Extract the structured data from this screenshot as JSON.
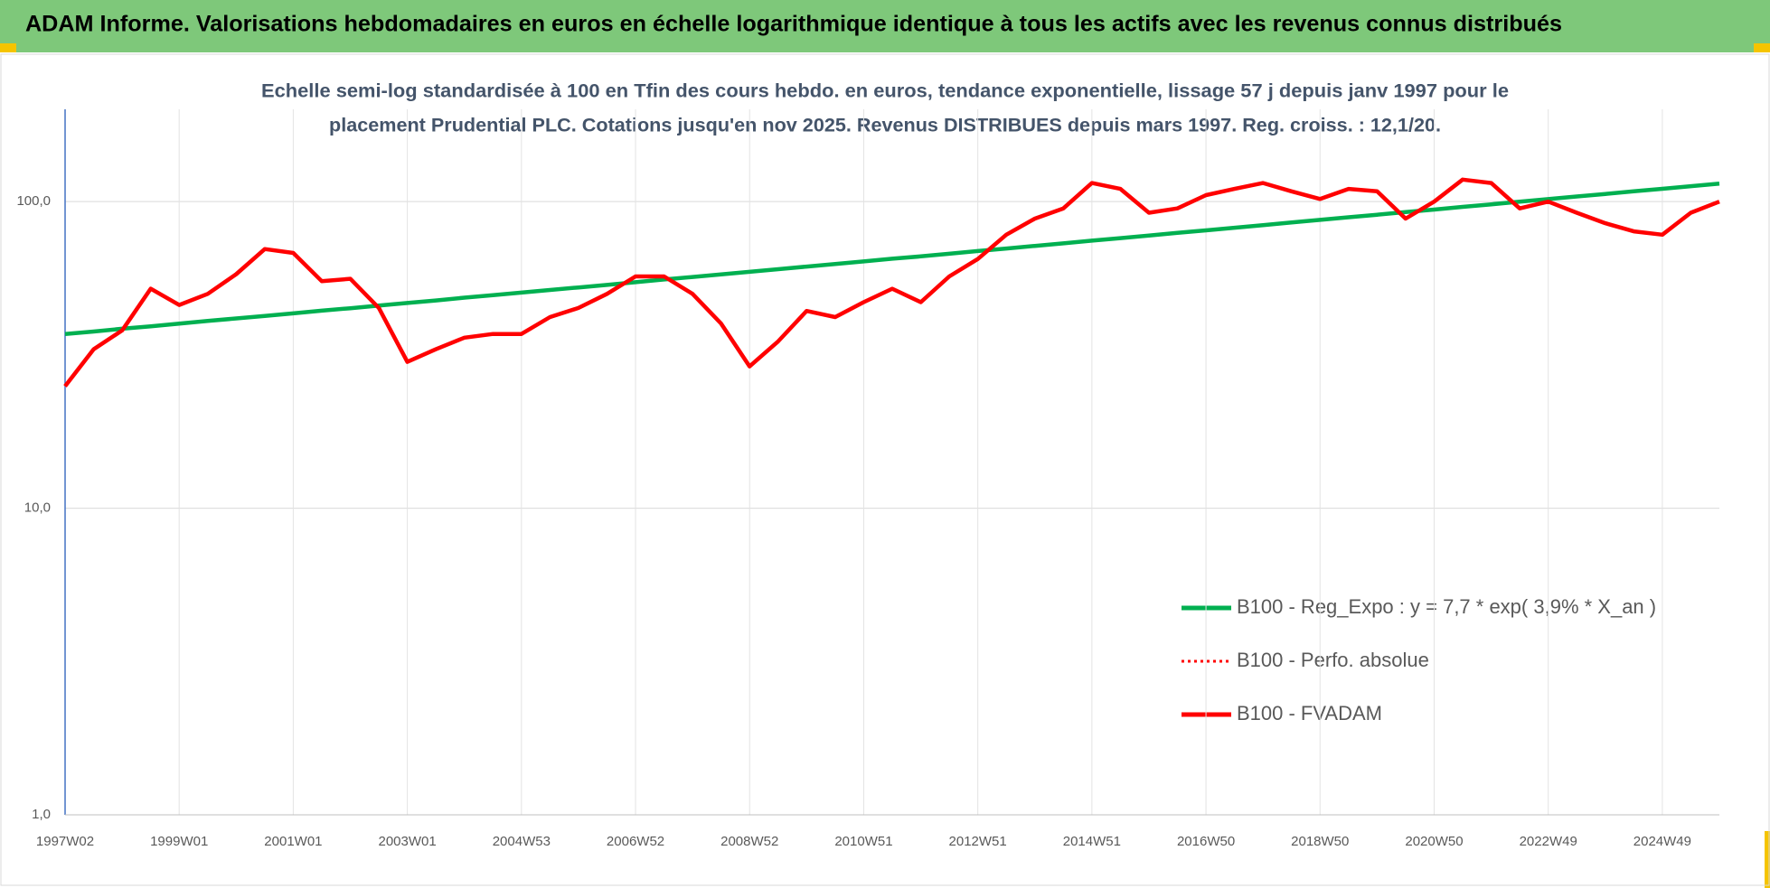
{
  "header": {
    "title": "ADAM Informe. Valorisations hebdomadaires en euros en échelle logarithmique identique à tous les actifs avec les revenus connus distribués"
  },
  "chart_data": {
    "type": "line",
    "subtitle": [
      "Echelle semi-log standardisée à 100 en Tfin des cours hebdo. en euros, tendance exponentielle, lissage 57 j depuis janv 1997 pour le",
      "placement Prudential PLC. Cotations jusqu'en nov 2025. Revenus DISTRIBUES depuis mars 1997. Reg. croiss. : 12,1/20."
    ],
    "categories": [
      "1997W02",
      null,
      null,
      null,
      "1999W01",
      null,
      null,
      null,
      "2001W01",
      null,
      null,
      null,
      "2003W01",
      null,
      null,
      null,
      "2004W53",
      null,
      null,
      null,
      "2006W52",
      null,
      null,
      null,
      "2008W52",
      null,
      null,
      null,
      "2010W51",
      null,
      null,
      null,
      "2012W51",
      null,
      null,
      null,
      "2014W51",
      null,
      null,
      null,
      "2016W50",
      null,
      null,
      null,
      "2018W50",
      null,
      null,
      null,
      "2020W50",
      null,
      null,
      null,
      "2022W49",
      null,
      null,
      null,
      "2024W49",
      null,
      null
    ],
    "log_scale": true,
    "ylim": [
      1,
      200
    ],
    "yticks": [
      {
        "value": 1,
        "label": "1,0"
      },
      {
        "value": 10,
        "label": "10,0"
      },
      {
        "value": 100,
        "label": "100,0"
      }
    ],
    "grid": true,
    "legend": "right",
    "series": [
      {
        "name": "B100 - Reg_Expo : y = 7,7 * exp( 3,9% *  X_an )",
        "color": "#00b050",
        "style": "solid",
        "values": [
          37.0,
          37.7,
          38.5,
          39.2,
          40.0,
          40.8,
          41.6,
          42.4,
          43.2,
          44.1,
          44.9,
          45.8,
          46.7,
          47.6,
          48.6,
          49.5,
          50.5,
          51.5,
          52.5,
          53.5,
          54.6,
          55.7,
          56.8,
          57.9,
          59.0,
          60.2,
          61.4,
          62.6,
          63.8,
          65.1,
          66.3,
          67.6,
          69.0,
          70.3,
          71.7,
          73.1,
          74.6,
          76.0,
          77.5,
          79.1,
          80.6,
          82.2,
          83.8,
          85.5,
          87.2,
          88.9,
          90.6,
          92.4,
          94.2,
          96.1,
          98.0,
          99.9,
          101.9,
          103.9,
          105.9,
          108.0,
          110.1,
          112.3,
          114.5
        ]
      },
      {
        "name": "B100 - Perfo. absolue",
        "color": "#ff0000",
        "style": "dotted",
        "values": [
          25,
          33,
          38,
          52,
          46,
          50,
          58,
          70,
          68,
          55,
          56,
          45,
          30,
          33,
          36,
          37,
          37,
          42,
          45,
          50,
          57,
          57,
          50,
          40,
          29,
          35,
          44,
          42,
          47,
          52,
          47,
          57,
          65,
          78,
          88,
          95,
          115,
          110,
          92,
          95,
          105,
          110,
          115,
          108,
          102,
          110,
          108,
          88,
          100,
          118,
          115,
          95,
          100,
          92,
          85,
          80,
          78,
          92,
          100
        ]
      },
      {
        "name": "B100 - FVADAM",
        "color": "#ff0000",
        "style": "solid",
        "values": [
          25,
          33,
          38,
          52,
          46,
          50,
          58,
          70,
          68,
          55,
          56,
          45,
          30,
          33,
          36,
          37,
          37,
          42,
          45,
          50,
          57,
          57,
          50,
          40,
          29,
          35,
          44,
          42,
          47,
          52,
          47,
          57,
          65,
          78,
          88,
          95,
          115,
          110,
          92,
          95,
          105,
          110,
          115,
          108,
          102,
          110,
          108,
          88,
          100,
          118,
          115,
          95,
          100,
          92,
          85,
          80,
          78,
          92,
          100
        ]
      }
    ]
  }
}
